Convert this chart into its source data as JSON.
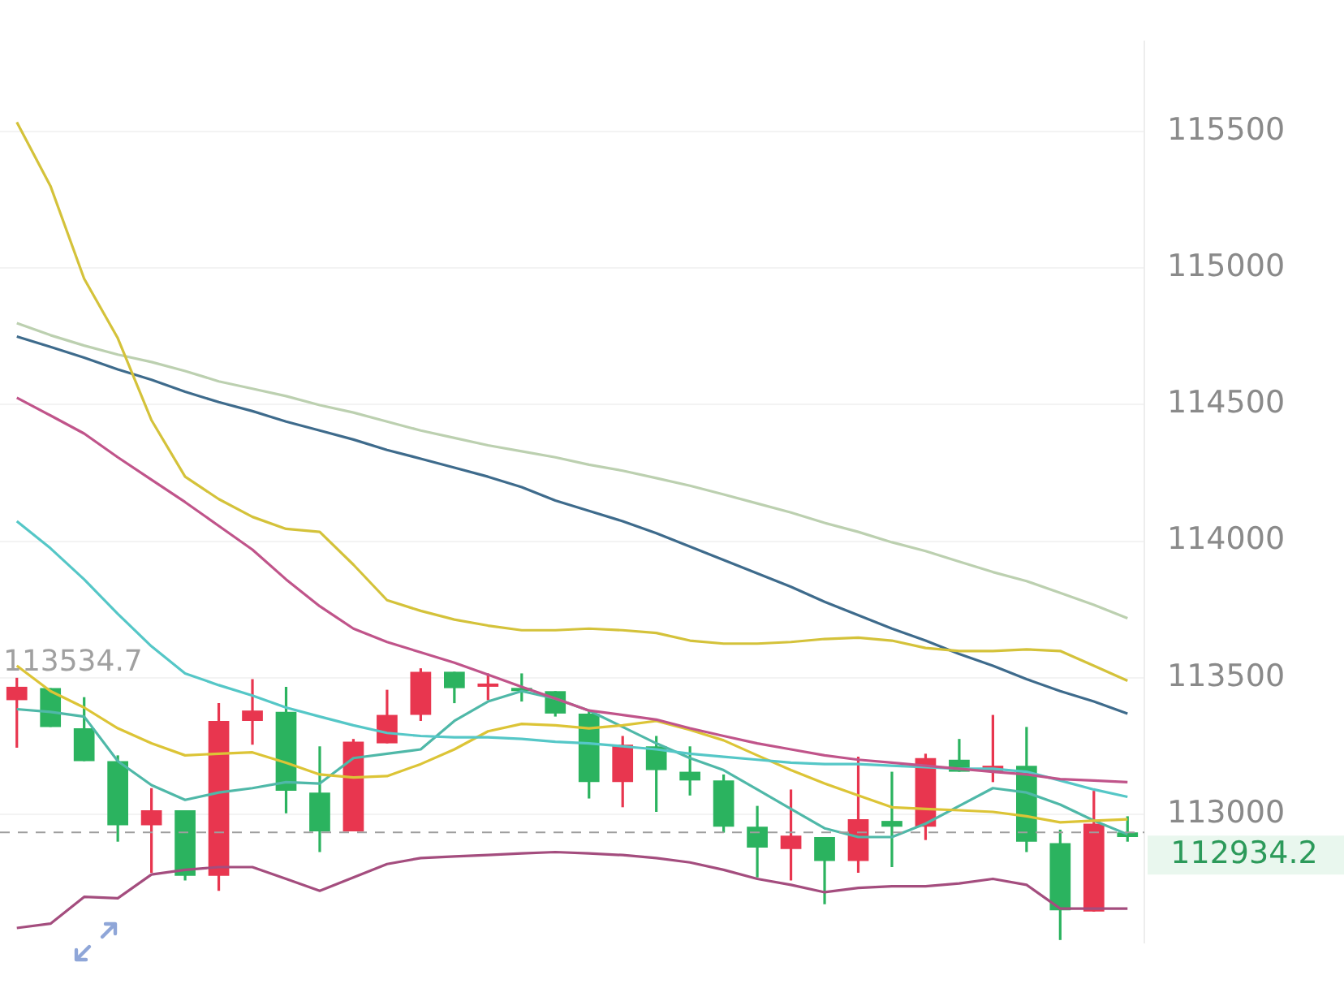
{
  "chart_data": {
    "type": "candlestick",
    "categories": [
      null,
      null,
      null,
      null,
      null,
      null,
      null,
      null,
      null,
      null,
      null,
      null,
      null,
      null,
      null,
      null,
      null,
      null,
      null,
      null,
      null,
      null,
      null,
      null,
      null,
      null,
      null,
      null,
      null,
      null,
      null,
      null,
      null,
      null
    ],
    "ohlc": [
      [
        113467,
        113500,
        113244,
        113418
      ],
      [
        113320,
        113462,
        113320,
        113462
      ],
      [
        113195,
        113429,
        113195,
        113315
      ],
      [
        112960,
        113216,
        112900,
        113195
      ],
      [
        113015,
        113096,
        112786,
        112960
      ],
      [
        112775,
        113015,
        112758,
        113015
      ],
      [
        113342,
        113407,
        112720,
        112775
      ],
      [
        113380,
        113495,
        113255,
        113342
      ],
      [
        113086,
        113467,
        113004,
        113375
      ],
      [
        112938,
        113249,
        112862,
        113080
      ],
      [
        113266,
        113276,
        112938,
        112938
      ],
      [
        113364,
        113456,
        113260,
        113260
      ],
      [
        113522,
        113534.7,
        113342,
        113364
      ],
      [
        113462,
        113522,
        113407,
        113522
      ],
      [
        113478,
        113516,
        113418,
        113467
      ],
      [
        113451,
        113516,
        113413,
        113462
      ],
      [
        113369,
        113451,
        113358,
        113451
      ],
      [
        113118,
        113380,
        113058,
        113369
      ],
      [
        113255,
        113287,
        113026,
        113118
      ],
      [
        113162,
        113287,
        113009,
        113249
      ],
      [
        113124,
        113249,
        113069,
        113156
      ],
      [
        112955,
        113146,
        112933,
        113124
      ],
      [
        112878,
        113031,
        112769,
        112955
      ],
      [
        112922,
        113091,
        112758,
        112873
      ],
      [
        112829,
        112917,
        112671,
        112917
      ],
      [
        112982,
        113211,
        112786,
        112829
      ],
      [
        112955,
        113156,
        112807,
        112976
      ],
      [
        113206,
        113222,
        112906,
        112955
      ],
      [
        113156,
        113276,
        113156,
        113200
      ],
      [
        113178,
        113364,
        113118,
        113156
      ],
      [
        112900,
        113320,
        112862,
        113178
      ],
      [
        112649,
        112944,
        112540,
        112895
      ],
      [
        112966,
        113086,
        112644,
        112644
      ],
      [
        112917,
        112993,
        112900,
        112934.2
      ]
    ],
    "colors": [
      "#e8364f",
      "#2bb35f",
      "#2bb35f",
      "#2bb35f",
      "#e8364f",
      "#2bb35f",
      "#e8364f",
      "#e8364f",
      "#2bb35f",
      "#2bb35f",
      "#e8364f",
      "#e8364f",
      "#e8364f",
      "#2bb35f",
      "#e8364f",
      "#2bb35f",
      "#2bb35f",
      "#2bb35f",
      "#e8364f",
      "#2bb35f",
      "#2bb35f",
      "#2bb35f",
      "#2bb35f",
      "#e8364f",
      "#2bb35f",
      "#e8364f",
      "#2bb35f",
      "#e8364f",
      "#2bb35f",
      "#e8364f",
      "#2bb35f",
      "#2bb35f",
      "#e8364f",
      "#2bb35f"
    ],
    "series": [
      {
        "type": "line",
        "color": "#d4c23a",
        "values": [
          115534,
          115300,
          114961,
          114743,
          114443,
          114236,
          114154,
          114089,
          114045,
          114034,
          113914,
          113784,
          113745,
          113713,
          113691,
          113674,
          113674,
          113680,
          113674,
          113664,
          113636,
          113625,
          113625,
          113631,
          113642,
          113647,
          113636,
          113609,
          113598,
          113598,
          113604,
          113598,
          113544,
          113489
        ]
      },
      {
        "type": "line",
        "color": "#bcd0b0",
        "values": [
          114798,
          114754,
          114716,
          114683,
          114656,
          114623,
          114585,
          114558,
          114531,
          114498,
          114471,
          114438,
          114405,
          114378,
          114351,
          114329,
          114307,
          114280,
          114258,
          114231,
          114203,
          114171,
          114138,
          114105,
          114067,
          114034,
          113996,
          113964,
          113925,
          113887,
          113854,
          113811,
          113767,
          113718
        ]
      },
      {
        "type": "line",
        "color": "#3e6b8c",
        "values": [
          114749,
          114711,
          114672,
          114629,
          114591,
          114547,
          114509,
          114476,
          114438,
          114405,
          114372,
          114334,
          114302,
          114269,
          114236,
          114198,
          114149,
          114111,
          114073,
          114029,
          113980,
          113931,
          113882,
          113833,
          113778,
          113729,
          113680,
          113636,
          113587,
          113544,
          113495,
          113451,
          113413,
          113369
        ]
      },
      {
        "type": "line",
        "color": "#c0548a",
        "values": [
          114525,
          114460,
          114394,
          114307,
          114225,
          114143,
          114056,
          113969,
          113860,
          113762,
          113680,
          113631,
          113593,
          113555,
          113511,
          113467,
          113424,
          113380,
          113364,
          113347,
          113315,
          113287,
          113260,
          113238,
          113216,
          113200,
          113189,
          113178,
          113167,
          113156,
          113146,
          113129,
          113124,
          113118
        ]
      },
      {
        "type": "line",
        "color": "#55c7c7",
        "values": [
          114073,
          113974,
          113860,
          113734,
          113615,
          113516,
          113473,
          113435,
          113391,
          113358,
          113326,
          113298,
          113287,
          113282,
          113282,
          113276,
          113266,
          113260,
          113249,
          113238,
          113222,
          113211,
          113200,
          113189,
          113184,
          113184,
          113178,
          113173,
          113167,
          113167,
          113156,
          113124,
          113091,
          113064
        ]
      },
      {
        "type": "line",
        "color": "#dcc436",
        "values": [
          113544,
          113451,
          113391,
          113315,
          113260,
          113216,
          113222,
          113227,
          113189,
          113146,
          113135,
          113140,
          113184,
          113238,
          113304,
          113331,
          113326,
          113315,
          113326,
          113342,
          113309,
          113271,
          113216,
          113162,
          113113,
          113069,
          113026,
          113020,
          113015,
          113009,
          112993,
          112971,
          112977,
          112982
        ]
      },
      {
        "type": "line",
        "color": "#4fb8a8",
        "values": [
          113385,
          113375,
          113358,
          113195,
          113107,
          113053,
          113080,
          113096,
          113118,
          113113,
          113206,
          113222,
          113238,
          113342,
          113413,
          113451,
          113424,
          113380,
          113320,
          113260,
          113206,
          113162,
          113091,
          113020,
          112949,
          112917,
          112917,
          112966,
          113031,
          113096,
          113080,
          113036,
          112977,
          112927
        ]
      },
      {
        "type": "line",
        "color": "#a44d7e",
        "values": [
          112584,
          112600,
          112698,
          112693,
          112780,
          112797,
          112807,
          112807,
          112764,
          112720,
          112769,
          112818,
          112840,
          112846,
          112851,
          112857,
          112862,
          112857,
          112851,
          112840,
          112824,
          112797,
          112764,
          112742,
          112715,
          112731,
          112737,
          112737,
          112747,
          112764,
          112742,
          112655,
          112655,
          112655
        ]
      }
    ],
    "ylim": [
      112530,
      115830
    ],
    "yticks": [
      113000,
      113500,
      114000,
      114500,
      115000,
      115500
    ],
    "grid": "y",
    "ref_lines": [
      {
        "axis": "y",
        "value": 112934.2,
        "label": "112934.2",
        "color": "#9e9e9e",
        "line_style": "dashed"
      }
    ],
    "annotations": [
      "113534.7"
    ]
  }
}
